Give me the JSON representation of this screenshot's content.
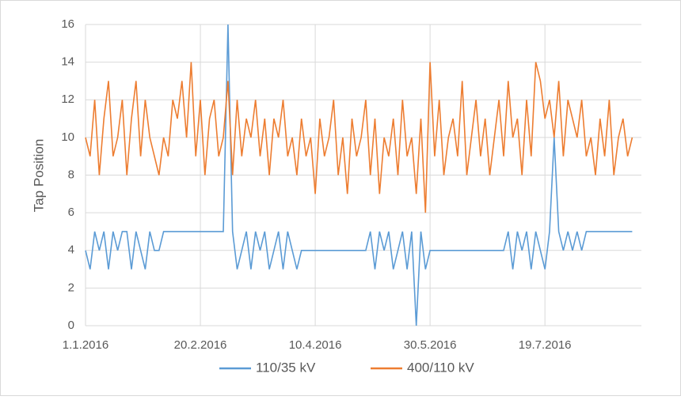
{
  "chart_data": {
    "type": "line",
    "y_label": "Tap Position",
    "x": [
      "2016-01-01",
      "2016-01-03",
      "2016-01-05",
      "2016-01-07",
      "2016-01-09",
      "2016-01-11",
      "2016-01-13",
      "2016-01-15",
      "2016-01-17",
      "2016-01-19",
      "2016-01-21",
      "2016-01-23",
      "2016-01-25",
      "2016-01-27",
      "2016-01-29",
      "2016-01-31",
      "2016-02-02",
      "2016-02-04",
      "2016-02-06",
      "2016-02-08",
      "2016-02-10",
      "2016-02-12",
      "2016-02-14",
      "2016-02-16",
      "2016-02-18",
      "2016-02-20",
      "2016-02-22",
      "2016-02-24",
      "2016-02-26",
      "2016-02-28",
      "2016-03-01",
      "2016-03-03",
      "2016-03-05",
      "2016-03-07",
      "2016-03-09",
      "2016-03-11",
      "2016-03-13",
      "2016-03-15",
      "2016-03-17",
      "2016-03-19",
      "2016-03-21",
      "2016-03-23",
      "2016-03-25",
      "2016-03-27",
      "2016-03-29",
      "2016-03-31",
      "2016-04-02",
      "2016-04-04",
      "2016-04-06",
      "2016-04-08",
      "2016-04-10",
      "2016-04-12",
      "2016-04-14",
      "2016-04-16",
      "2016-04-18",
      "2016-04-20",
      "2016-04-22",
      "2016-04-24",
      "2016-04-26",
      "2016-04-28",
      "2016-04-30",
      "2016-05-02",
      "2016-05-04",
      "2016-05-06",
      "2016-05-08",
      "2016-05-10",
      "2016-05-12",
      "2016-05-14",
      "2016-05-16",
      "2016-05-18",
      "2016-05-20",
      "2016-05-22",
      "2016-05-24",
      "2016-05-26",
      "2016-05-28",
      "2016-05-30",
      "2016-06-01",
      "2016-06-03",
      "2016-06-05",
      "2016-06-07",
      "2016-06-09",
      "2016-06-11",
      "2016-06-13",
      "2016-06-15",
      "2016-06-17",
      "2016-06-19",
      "2016-06-21",
      "2016-06-23",
      "2016-06-25",
      "2016-06-27",
      "2016-06-29",
      "2016-07-01",
      "2016-07-03",
      "2016-07-05",
      "2016-07-07",
      "2016-07-09",
      "2016-07-11",
      "2016-07-13",
      "2016-07-15",
      "2016-07-17",
      "2016-07-19",
      "2016-07-21",
      "2016-07-23",
      "2016-07-25",
      "2016-07-27",
      "2016-07-29",
      "2016-07-31",
      "2016-08-02",
      "2016-08-04",
      "2016-08-06",
      "2016-08-08",
      "2016-08-10",
      "2016-08-12",
      "2016-08-14",
      "2016-08-16",
      "2016-08-18",
      "2016-08-20",
      "2016-08-22",
      "2016-08-24",
      "2016-08-26"
    ],
    "series": [
      {
        "name": "110/35 kV",
        "color": "#5b9bd5",
        "values": [
          4,
          3,
          5,
          4,
          5,
          3,
          5,
          4,
          5,
          5,
          3,
          5,
          4,
          3,
          5,
          4,
          4,
          5,
          5,
          5,
          5,
          5,
          5,
          5,
          5,
          5,
          5,
          5,
          5,
          5,
          5,
          16,
          5,
          3,
          4,
          5,
          3,
          5,
          4,
          5,
          3,
          4,
          5,
          3,
          5,
          4,
          3,
          4,
          4,
          4,
          4,
          4,
          4,
          4,
          4,
          4,
          4,
          4,
          4,
          4,
          4,
          4,
          5,
          3,
          5,
          4,
          5,
          3,
          4,
          5,
          3,
          5,
          0,
          5,
          3,
          4,
          4,
          4,
          4,
          4,
          4,
          4,
          4,
          4,
          4,
          4,
          4,
          4,
          4,
          4,
          4,
          4,
          5,
          3,
          5,
          4,
          5,
          3,
          5,
          4,
          3,
          5,
          10,
          5,
          4,
          5,
          4,
          5,
          4,
          5,
          5,
          5,
          5,
          5,
          5,
          5,
          5,
          5,
          5,
          5
        ]
      },
      {
        "name": "400/110 kV",
        "color": "#ed7d31",
        "values": [
          10,
          9,
          12,
          8,
          11,
          13,
          9,
          10,
          12,
          8,
          11,
          13,
          9,
          12,
          10,
          9,
          8,
          10,
          9,
          12,
          11,
          13,
          10,
          14,
          9,
          12,
          8,
          11,
          12,
          9,
          10,
          13,
          8,
          12,
          9,
          11,
          10,
          12,
          9,
          11,
          8,
          11,
          10,
          12,
          9,
          10,
          8,
          11,
          9,
          10,
          7,
          11,
          9,
          10,
          12,
          8,
          10,
          7,
          11,
          9,
          10,
          12,
          8,
          11,
          7,
          10,
          9,
          11,
          8,
          12,
          9,
          10,
          7,
          11,
          6,
          14,
          9,
          12,
          8,
          10,
          11,
          9,
          13,
          8,
          10,
          12,
          9,
          11,
          8,
          10,
          12,
          9,
          13,
          10,
          11,
          8,
          12,
          9,
          14,
          13,
          11,
          12,
          10,
          13,
          9,
          12,
          11,
          10,
          12,
          9,
          10,
          8,
          11,
          9,
          12,
          8,
          10,
          11,
          9,
          10
        ]
      }
    ],
    "xlim": [
      "2016-01-01",
      "2016-08-30"
    ],
    "xticks": [
      {
        "value": "2016-01-01",
        "label": "1.1.2016"
      },
      {
        "value": "2016-02-20",
        "label": "20.2.2016"
      },
      {
        "value": "2016-04-10",
        "label": "10.4.2016"
      },
      {
        "value": "2016-05-30",
        "label": "30.5.2016"
      },
      {
        "value": "2016-07-19",
        "label": "19.7.2016"
      }
    ],
    "ylim": [
      0,
      16
    ],
    "yticks": [
      0,
      2,
      4,
      6,
      8,
      10,
      12,
      14,
      16
    ],
    "grid": true,
    "legend": "bottom"
  }
}
